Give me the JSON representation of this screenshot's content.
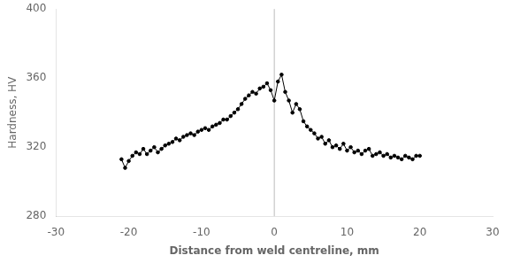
{
  "chart_data": {
    "type": "line",
    "xlabel": "Distance from weld centreline, mm",
    "ylabel": "Hardness, HV",
    "xlim": [
      -30,
      30
    ],
    "ylim": [
      280,
      400
    ],
    "xticks": [
      -30,
      -20,
      -10,
      0,
      10,
      20,
      30
    ],
    "yticks": [
      280,
      320,
      360,
      400
    ],
    "color": "#000000",
    "marker": "circle",
    "grid": false,
    "vline": {
      "x": 0,
      "color": "#bbbbbb"
    },
    "x": [
      -21.0,
      -20.5,
      -20.0,
      -19.5,
      -19.0,
      -18.5,
      -18.0,
      -17.5,
      -17.0,
      -16.5,
      -16.0,
      -15.5,
      -15.0,
      -14.5,
      -14.0,
      -13.5,
      -13.0,
      -12.5,
      -12.0,
      -11.5,
      -11.0,
      -10.5,
      -10.0,
      -9.5,
      -9.0,
      -8.5,
      -8.0,
      -7.5,
      -7.0,
      -6.5,
      -6.0,
      -5.5,
      -5.0,
      -4.5,
      -4.0,
      -3.5,
      -3.0,
      -2.5,
      -2.0,
      -1.5,
      -1.0,
      -0.5,
      0.0,
      0.5,
      1.0,
      1.5,
      2.0,
      2.5,
      3.0,
      3.5,
      4.0,
      4.5,
      5.0,
      5.5,
      6.0,
      6.5,
      7.0,
      7.5,
      8.0,
      8.5,
      9.0,
      9.5,
      10.0,
      10.5,
      11.0,
      11.5,
      12.0,
      12.5,
      13.0,
      13.5,
      14.0,
      14.5,
      15.0,
      15.5,
      16.0,
      16.5,
      17.0,
      17.5,
      18.0,
      18.5,
      19.0,
      19.5,
      20.0
    ],
    "values": [
      313,
      308,
      312,
      315,
      317,
      316,
      319,
      316,
      318,
      320,
      317,
      319,
      321,
      322,
      323,
      325,
      324,
      326,
      327,
      328,
      327,
      329,
      330,
      331,
      330,
      332,
      333,
      334,
      336,
      336,
      338,
      340,
      342,
      345,
      348,
      350,
      352,
      351,
      354,
      355,
      357,
      353,
      347,
      358,
      362,
      352,
      347,
      340,
      345,
      342,
      335,
      332,
      330,
      328,
      325,
      326,
      322,
      324,
      320,
      321,
      319,
      322,
      318,
      320,
      317,
      318,
      316,
      318,
      319,
      315,
      316,
      317,
      315,
      316,
      314,
      315,
      314,
      313,
      315,
      314,
      313,
      315,
      315
    ]
  }
}
